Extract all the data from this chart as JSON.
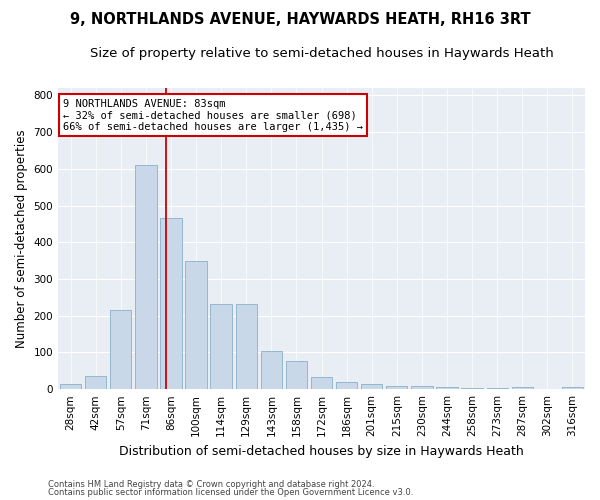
{
  "title": "9, NORTHLANDS AVENUE, HAYWARDS HEATH, RH16 3RT",
  "subtitle": "Size of property relative to semi-detached houses in Haywards Heath",
  "xlabel": "Distribution of semi-detached houses by size in Haywards Heath",
  "ylabel": "Number of semi-detached properties",
  "footnote1": "Contains HM Land Registry data © Crown copyright and database right 2024.",
  "footnote2": "Contains public sector information licensed under the Open Government Licence v3.0.",
  "categories": [
    "28sqm",
    "42sqm",
    "57sqm",
    "71sqm",
    "86sqm",
    "100sqm",
    "114sqm",
    "129sqm",
    "143sqm",
    "158sqm",
    "172sqm",
    "186sqm",
    "201sqm",
    "215sqm",
    "230sqm",
    "244sqm",
    "258sqm",
    "273sqm",
    "287sqm",
    "302sqm",
    "316sqm"
  ],
  "values": [
    15,
    35,
    215,
    610,
    465,
    350,
    232,
    232,
    105,
    78,
    32,
    20,
    13,
    10,
    10,
    5,
    4,
    2,
    7,
    0,
    5
  ],
  "bar_color": "#c8d8e8",
  "bar_edgecolor": "#8ab0c8",
  "vline_x": 3.82,
  "vline_color": "#cc0000",
  "annotation_text": "9 NORTHLANDS AVENUE: 83sqm\n← 32% of semi-detached houses are smaller (698)\n66% of semi-detached houses are larger (1,435) →",
  "annotation_box_facecolor": "#ffffff",
  "annotation_box_edgecolor": "#cc0000",
  "ylim": [
    0,
    820
  ],
  "yticks": [
    0,
    100,
    200,
    300,
    400,
    500,
    600,
    700,
    800
  ],
  "background_color": "#e8eef4",
  "title_fontsize": 10.5,
  "subtitle_fontsize": 9.5,
  "xlabel_fontsize": 9,
  "ylabel_fontsize": 8.5,
  "tick_fontsize": 7.5,
  "annot_fontsize": 7.5,
  "footnote_fontsize": 6
}
